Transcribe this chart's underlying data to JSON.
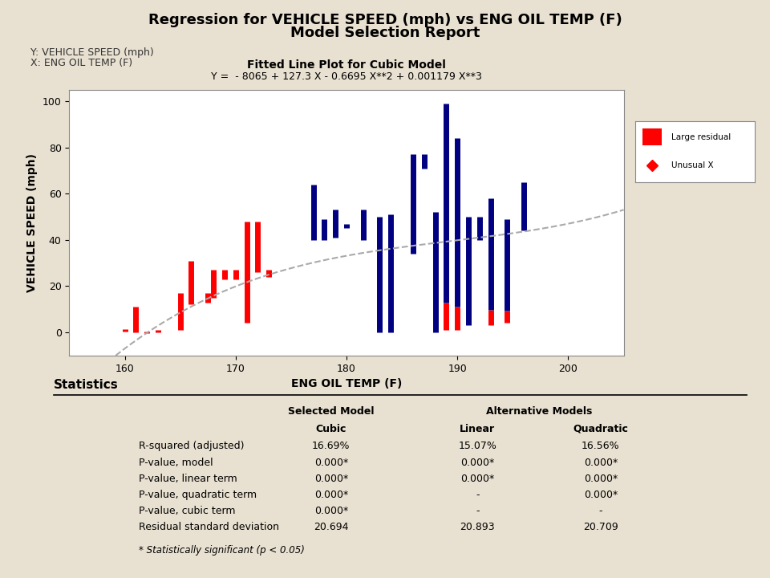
{
  "title1": "Regression for VEHICLE SPEED (mph) vs ENG OIL TEMP (F)",
  "title2": "Model Selection Report",
  "subplot_title": "Fitted Line Plot for Cubic Model",
  "equation": "Y =  - 8065 + 127.3 X - 0.6695 X**2 + 0.001179 X**3",
  "ylabel_left1": "Y: VEHICLE SPEED (mph)",
  "ylabel_left2": "X: ENG OIL TEMP (F)",
  "xlabel": "ENG OIL TEMP (F)",
  "ylabel": "VEHICLE SPEED (mph)",
  "xlim": [
    155,
    205
  ],
  "ylim": [
    -10,
    105
  ],
  "xticks": [
    160,
    170,
    180,
    190,
    200
  ],
  "yticks": [
    0,
    20,
    40,
    60,
    80,
    100
  ],
  "bg_color": "#e8e0d0",
  "plot_bg_color": "#ffffff",
  "cubic_coeffs": [
    -8065,
    127.3,
    -0.6695,
    0.001179
  ],
  "data_points": [
    {
      "x": 160.0,
      "y_bot": 0.5,
      "y_top": 1.5,
      "color": "red"
    },
    {
      "x": 161.0,
      "y_bot": 0.0,
      "y_top": 11.0,
      "color": "red"
    },
    {
      "x": 162.0,
      "y_bot": -0.5,
      "y_top": 0.5,
      "color": "red"
    },
    {
      "x": 163.0,
      "y_bot": 0.0,
      "y_top": 1.0,
      "color": "red"
    },
    {
      "x": 165.0,
      "y_bot": 1.0,
      "y_top": 17.0,
      "color": "red"
    },
    {
      "x": 166.0,
      "y_bot": 12.0,
      "y_top": 31.0,
      "color": "red"
    },
    {
      "x": 167.5,
      "y_bot": 13.0,
      "y_top": 17.0,
      "color": "red"
    },
    {
      "x": 168.0,
      "y_bot": 15.0,
      "y_top": 27.0,
      "color": "red"
    },
    {
      "x": 169.0,
      "y_bot": 23.0,
      "y_top": 27.0,
      "color": "red"
    },
    {
      "x": 170.0,
      "y_bot": 23.0,
      "y_top": 27.0,
      "color": "red"
    },
    {
      "x": 171.0,
      "y_bot": 4.0,
      "y_top": 48.0,
      "color": "red"
    },
    {
      "x": 172.0,
      "y_bot": 26.0,
      "y_top": 48.0,
      "color": "red"
    },
    {
      "x": 173.0,
      "y_bot": 24.0,
      "y_top": 27.0,
      "color": "red"
    },
    {
      "x": 177.0,
      "y_bot": 40.0,
      "y_top": 64.0,
      "color": "navy"
    },
    {
      "x": 178.0,
      "y_bot": 40.0,
      "y_top": 49.0,
      "color": "navy"
    },
    {
      "x": 179.0,
      "y_bot": 41.0,
      "y_top": 53.0,
      "color": "navy"
    },
    {
      "x": 180.0,
      "y_bot": 45.0,
      "y_top": 47.0,
      "color": "navy"
    },
    {
      "x": 181.5,
      "y_bot": 40.0,
      "y_top": 53.0,
      "color": "navy"
    },
    {
      "x": 183.0,
      "y_bot": 0.0,
      "y_top": 50.0,
      "color": "navy"
    },
    {
      "x": 184.0,
      "y_bot": 0.0,
      "y_top": 51.0,
      "color": "navy"
    },
    {
      "x": 186.0,
      "y_bot": 34.0,
      "y_top": 77.0,
      "color": "navy"
    },
    {
      "x": 187.0,
      "y_bot": 71.0,
      "y_top": 77.0,
      "color": "navy"
    },
    {
      "x": 188.0,
      "y_bot": 0.0,
      "y_top": 52.0,
      "color": "navy"
    },
    {
      "x": 189.0,
      "y_bot": 1.0,
      "y_top": 99.0,
      "color_bot": "red",
      "color_top": "navy"
    },
    {
      "x": 190.0,
      "y_bot": 1.0,
      "y_top": 84.0,
      "color_bot": "red",
      "color_top": "navy"
    },
    {
      "x": 191.0,
      "y_bot": 3.0,
      "y_top": 50.0,
      "color": "navy"
    },
    {
      "x": 192.0,
      "y_bot": 40.0,
      "y_top": 50.0,
      "color": "navy"
    },
    {
      "x": 193.0,
      "y_bot": 3.0,
      "y_top": 58.0,
      "color_bot": "red",
      "color_top": "navy"
    },
    {
      "x": 194.5,
      "y_bot": 4.0,
      "y_top": 49.0,
      "color_bot": "red",
      "color_top": "navy"
    },
    {
      "x": 196.0,
      "y_bot": 44.0,
      "y_top": 65.0,
      "color": "navy"
    }
  ],
  "stats_rows": [
    [
      "R-squared (adjusted)",
      "16.69%",
      "15.07%",
      "16.56%"
    ],
    [
      "P-value, model",
      "0.000*",
      "0.000*",
      "0.000*"
    ],
    [
      "P-value, linear term",
      "0.000*",
      "0.000*",
      "0.000*"
    ],
    [
      "P-value, quadratic term",
      "0.000*",
      "-",
      "0.000*"
    ],
    [
      "P-value, cubic term",
      "0.000*",
      "-",
      "-"
    ],
    [
      "Residual standard deviation",
      "20.694",
      "20.893",
      "20.709"
    ]
  ],
  "stats_footer": "* Statistically significant (p < 0.05)"
}
